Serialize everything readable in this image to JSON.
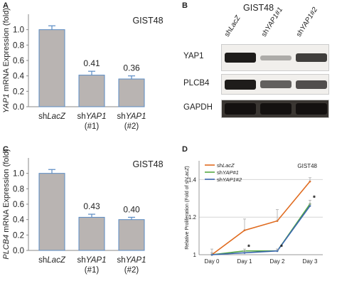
{
  "panel_letters": {
    "a": "A",
    "b": "B",
    "c": "C",
    "d": "D"
  },
  "colors": {
    "bar_fill": "#b9b4b2",
    "bar_stroke": "#5a8bc4",
    "series_lacz": "#e06b1f",
    "series_yap1_1": "#55a843",
    "series_yap1_2": "#3b67b0"
  },
  "chart_data": [
    {
      "type": "bar",
      "panel": "A",
      "title": "GIST48",
      "ylabel": {
        "italic": "YAP1",
        "normal": " mRNA Expression (fold)"
      },
      "ylim": [
        0,
        1.2
      ],
      "yticks": [
        "0.0",
        "0.2",
        "0.4",
        "0.6",
        "0.8",
        "1.0"
      ],
      "categories": [
        {
          "prefix": "sh",
          "italic": "LacZ",
          "sub": ""
        },
        {
          "prefix": "sh",
          "italic": "YAP1",
          "sub": "(#1)"
        },
        {
          "prefix": "sh",
          "italic": "YAP1",
          "sub": "(#2)"
        }
      ],
      "values": [
        1.0,
        0.41,
        0.36
      ],
      "errors": [
        0.05,
        0.05,
        0.04
      ],
      "data_labels": [
        "",
        "0.41",
        "0.36"
      ]
    },
    {
      "type": "bar",
      "panel": "C",
      "title": "GIST48",
      "ylabel": {
        "italic": "PLCB4",
        "normal": " mRNA Expression (fold)"
      },
      "ylim": [
        0,
        1.2
      ],
      "yticks": [
        "0.0",
        "0.2",
        "0.4",
        "0.6",
        "0.8",
        "1.0"
      ],
      "categories": [
        {
          "prefix": "sh",
          "italic": "LacZ",
          "sub": ""
        },
        {
          "prefix": "sh",
          "italic": "YAP1",
          "sub": "(#1)"
        },
        {
          "prefix": "sh",
          "italic": "YAP1",
          "sub": "(#2)"
        }
      ],
      "values": [
        1.0,
        0.43,
        0.4
      ],
      "errors": [
        0.05,
        0.04,
        0.03
      ],
      "data_labels": [
        "",
        "0.43",
        "0.40"
      ]
    },
    {
      "type": "line",
      "panel": "D",
      "title": "GIST48",
      "ylabel": {
        "normal": "Relative Proliferation (Fold of sh",
        "italic": "LacZ",
        "suffix": ")"
      },
      "ylim": [
        1,
        1.5
      ],
      "yticks": [
        "1",
        "1.2",
        "1.4"
      ],
      "categories": [
        "Day 0",
        "Day 1",
        "Day 2",
        "Day 3"
      ],
      "series": [
        {
          "name": "shLacZ",
          "prefix": "sh",
          "italic": "LacZ",
          "color": "#e06b1f",
          "values": [
            1.0,
            1.13,
            1.18,
            1.39
          ],
          "errors": [
            0.03,
            0.06,
            0.06,
            0.02
          ]
        },
        {
          "name": "shYAP#1",
          "prefix": "sh",
          "italic": "YAP#1",
          "color": "#55a843",
          "values": [
            1.0,
            1.02,
            1.02,
            1.27
          ],
          "errors": [
            0.01,
            0.01,
            0.01,
            0.02
          ]
        },
        {
          "name": "shYAP1#2",
          "prefix": "sh",
          "italic": "YAP1#2",
          "color": "#3b67b0",
          "values": [
            1.0,
            1.01,
            1.02,
            1.26
          ],
          "errors": [
            0.01,
            0.01,
            0.01,
            0.01
          ]
        }
      ],
      "significance_marker": "*",
      "legend_position": "top-left",
      "grid": true
    }
  ],
  "western_blot": {
    "title": "GIST48",
    "lane_labels": [
      {
        "prefix": "sh",
        "italic": "LacZ"
      },
      {
        "prefix": "sh",
        "italic": "YAP1#1"
      },
      {
        "prefix": "sh",
        "italic": "YAP1#2"
      }
    ],
    "rows": [
      {
        "label": "YAP1",
        "band_levels": [
          1.0,
          0.15,
          0.8
        ]
      },
      {
        "label": "PLCB4",
        "band_levels": [
          1.0,
          0.6,
          0.7
        ]
      },
      {
        "label": "GAPDH",
        "band_levels": [
          1.0,
          1.0,
          1.0
        ]
      }
    ]
  }
}
